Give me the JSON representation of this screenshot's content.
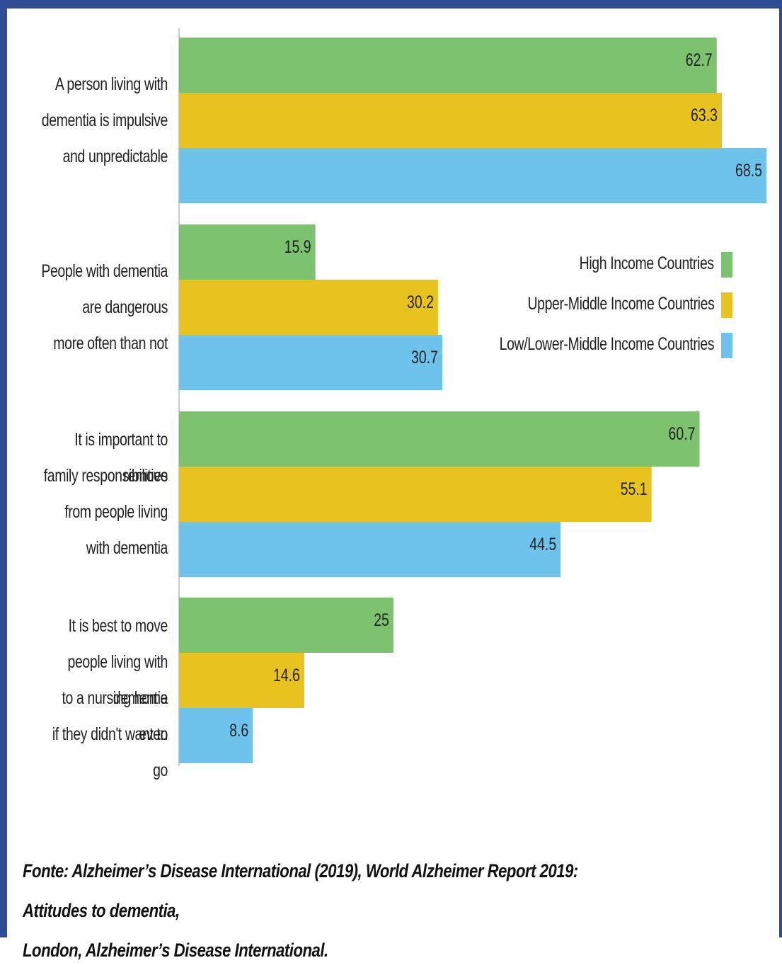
{
  "chart_data": {
    "type": "bar",
    "orientation": "horizontal",
    "categories": [
      [
        "A person living with",
        "dementia is impulsive",
        "and unpredictable"
      ],
      [
        "People with dementia",
        "are dangerous",
        "more often than not"
      ],
      [
        "It is important to remove",
        "family responsibilities",
        "from people living",
        "with dementia"
      ],
      [
        "It is best to move",
        "people living with dementia",
        "to a nursing home even",
        "if they didn't want to go"
      ]
    ],
    "series": [
      {
        "name": "High Income Countries",
        "color": "#7dc36f",
        "values": [
          62.7,
          15.9,
          60.7,
          25
        ]
      },
      {
        "name": "Upper-Middle Income Countries",
        "color": "#e8c21e",
        "values": [
          63.3,
          30.2,
          55.1,
          14.6
        ]
      },
      {
        "name": "Low/Lower-Middle Income Countries",
        "color": "#6ec3ec",
        "values": [
          68.5,
          30.7,
          44.5,
          8.6
        ]
      }
    ],
    "data_labels": [
      [
        "62.7",
        "15.9",
        "60.7",
        "25"
      ],
      [
        "63.3",
        "30.2",
        "55.1",
        "14.6"
      ],
      [
        "68.5",
        "30.7",
        "44.5",
        "8.6"
      ]
    ],
    "xlim": [
      0,
      68.5
    ],
    "legend": "right",
    "grid": false
  },
  "source": {
    "line1": "Fonte: Alzheimer’s Disease International (2019), World Alzheimer Report 2019: Attitudes to dementia,",
    "line2": "London, Alzheimer’s Disease International."
  }
}
